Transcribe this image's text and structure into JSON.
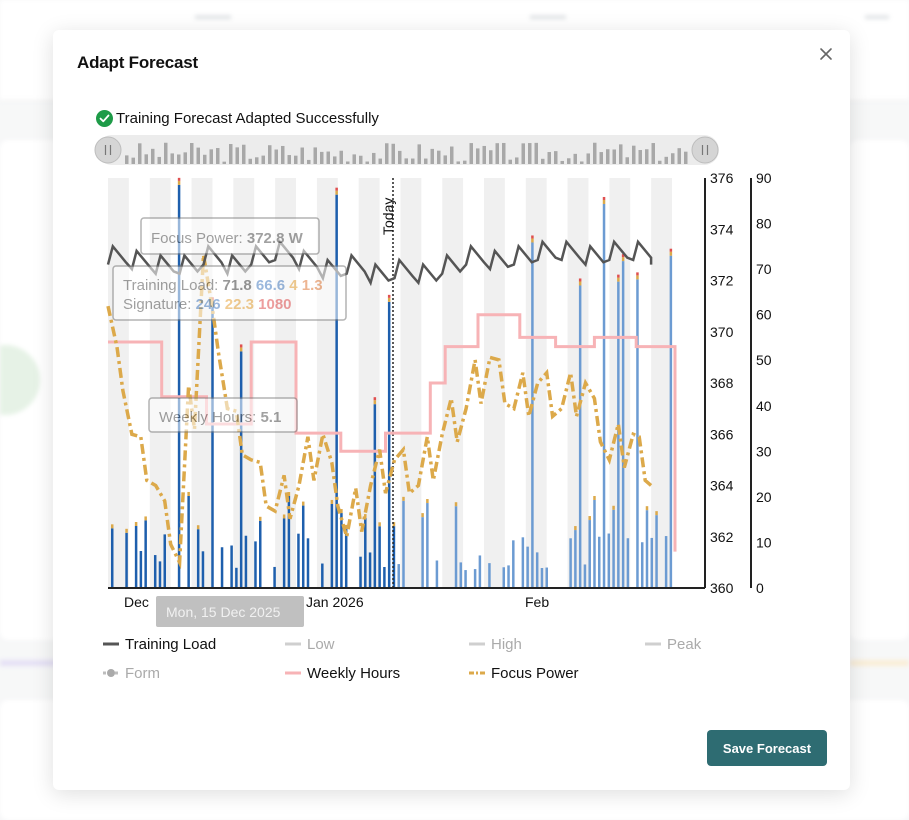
{
  "modal": {
    "title": "Adapt Forecast",
    "success_message": "Training Forecast Adapted Successfully",
    "save_label": "Save Forecast",
    "close_icon": "close-icon",
    "success_icon": "check-circle-icon"
  },
  "colors": {
    "training_load": "#555555",
    "weekly_hours": "#f7b3b6",
    "focus_power": "#dca94a",
    "bar_actual": "#1e5fad",
    "bar_forecast": "#6c9bd2",
    "save_button": "#2e6c72",
    "success": "#1e9b48"
  },
  "chart_data": {
    "type": "line",
    "x_ticks": [
      "Dec",
      "Jan 2026",
      "Feb"
    ],
    "left_axis_ticks": [
      "376",
      "374",
      "372",
      "370",
      "368",
      "366",
      "364",
      "362",
      "360"
    ],
    "right_axis_ticks": [
      "90",
      "80",
      "70",
      "60",
      "50",
      "40",
      "30",
      "20",
      "10",
      "0"
    ],
    "left_axis_range": [
      360,
      376
    ],
    "right_axis_range": [
      0,
      90
    ],
    "today_label": "Today",
    "legend": [
      {
        "label": "Training Load",
        "active": true
      },
      {
        "label": "Low",
        "active": false
      },
      {
        "label": "High",
        "active": false
      },
      {
        "label": "Peak",
        "active": false
      },
      {
        "label": "Form",
        "active": false
      },
      {
        "label": "Weekly Hours",
        "active": true
      },
      {
        "label": "Focus Power",
        "active": true
      }
    ],
    "tooltip": {
      "date": "Mon, 15 Dec 2025",
      "focus_power_label": "Focus Power:",
      "focus_power_value": "372.8 W",
      "training_load_label": "Training Load:",
      "training_load_values": [
        "71.8",
        "66.6",
        "4",
        "1.3"
      ],
      "signature_label": "Signature:",
      "signature_values": [
        "246",
        "22.3",
        "1080"
      ],
      "weekly_hours_label": "Weekly Hours:",
      "weekly_hours_value": "5.1"
    },
    "series": [
      {
        "name": "Weekly Hours",
        "x": [
          0,
          18,
          18,
          33,
          33,
          48,
          48,
          63,
          63,
          78,
          78,
          93,
          93,
          108,
          108,
          113,
          113,
          124,
          124,
          138,
          138,
          150,
          150,
          163,
          163,
          177,
          177,
          190,
          190
        ],
        "y": [
          54,
          54,
          42,
          42,
          36,
          36,
          54,
          54,
          34,
          34,
          30,
          30,
          34,
          34,
          45,
          45,
          53,
          53,
          60,
          60,
          55,
          55,
          53,
          53,
          55,
          55,
          53,
          53,
          8
        ]
      },
      {
        "name": "Training Load",
        "x": [
          0,
          8,
          16,
          24,
          32,
          40,
          48,
          56,
          64,
          72,
          80,
          88,
          96,
          104,
          112,
          120,
          128,
          136,
          144,
          152,
          160,
          168,
          176,
          182
        ],
        "y": [
          71,
          70,
          69,
          69,
          71,
          69,
          71,
          72,
          70,
          68,
          69,
          67,
          68,
          67,
          69,
          71,
          70,
          71,
          72,
          72,
          71,
          72,
          72,
          71
        ]
      },
      {
        "name": "Focus Power",
        "x": [
          0,
          8,
          16,
          24,
          32,
          40,
          48,
          56,
          64,
          72,
          80,
          88,
          96,
          104,
          112,
          120,
          128,
          136,
          144,
          152,
          160,
          168,
          176,
          182
        ],
        "y": [
          371,
          366,
          364,
          361,
          373,
          367,
          365,
          363,
          364,
          366,
          362,
          364,
          365,
          364,
          366,
          367,
          369,
          367,
          368,
          367,
          368,
          365,
          366,
          364
        ]
      }
    ]
  }
}
